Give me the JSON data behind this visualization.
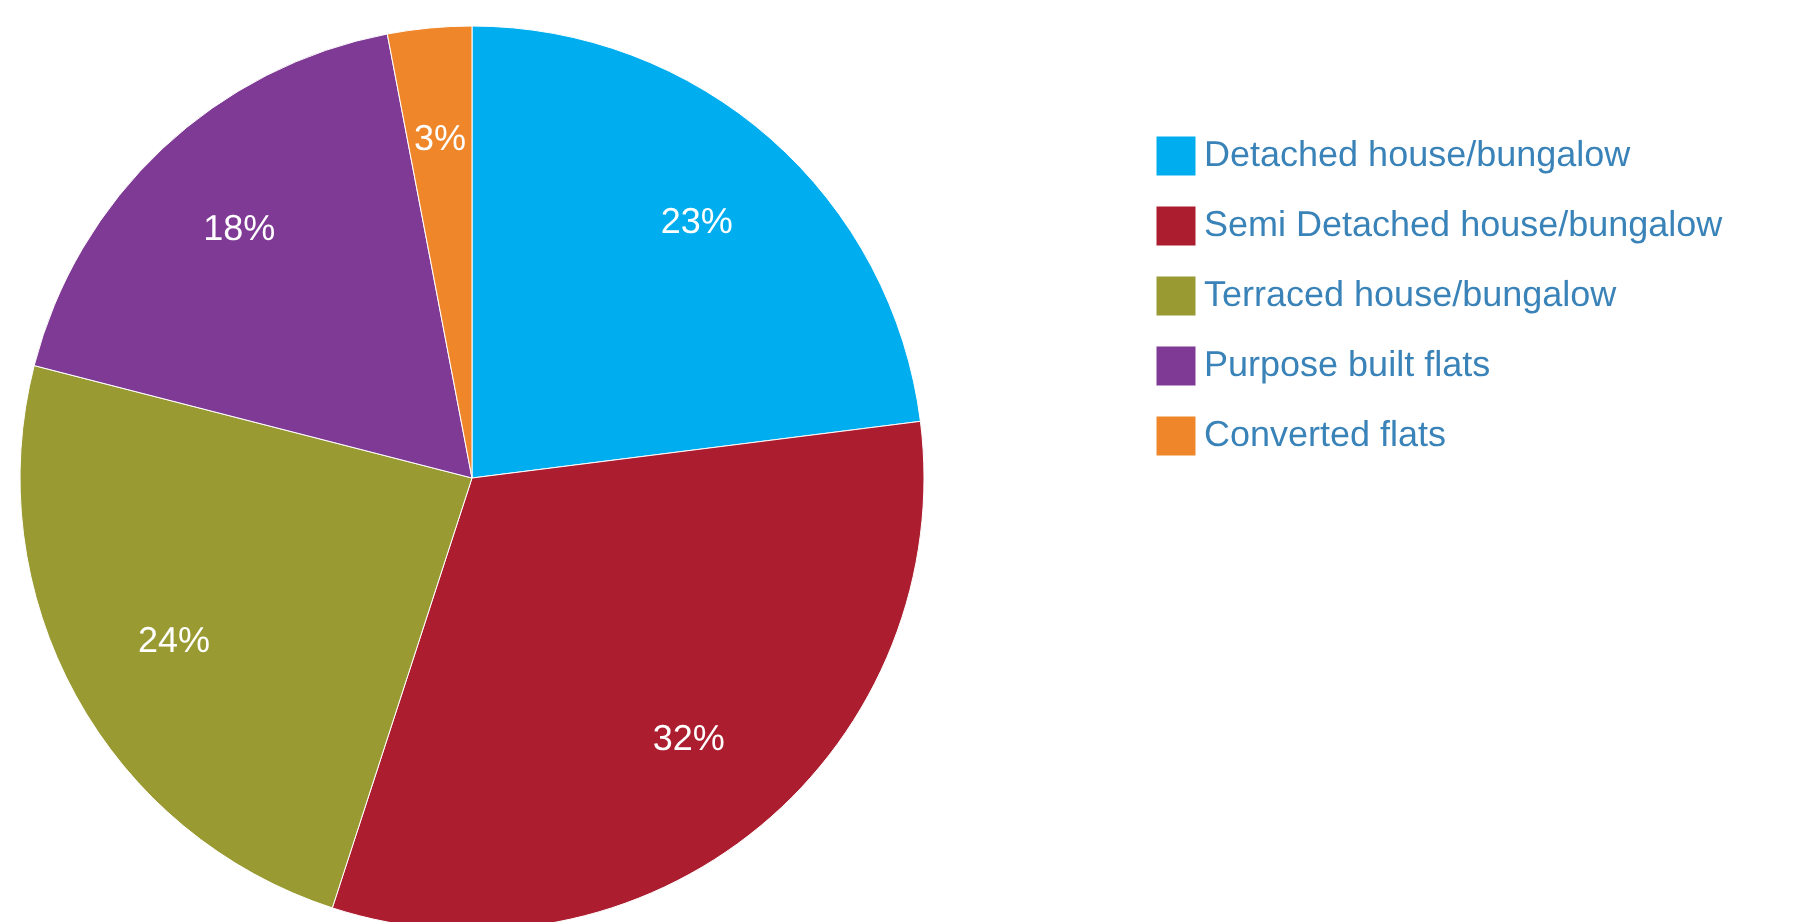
{
  "chart_data": {
    "type": "pie",
    "categories": [
      "Detached house/bungalow",
      "Semi Detached house/bungalow",
      "Terraced house/bungalow",
      "Purpose built flats",
      "Converted flats"
    ],
    "values": [
      23,
      32,
      24,
      18,
      3
    ],
    "colors": [
      "#00aeef",
      "#ab1d2f",
      "#9a9a33",
      "#7f3a95",
      "#f0862a"
    ],
    "value_labels": [
      "23%",
      "32%",
      "24%",
      "18%",
      "3%"
    ],
    "legend": "right"
  }
}
